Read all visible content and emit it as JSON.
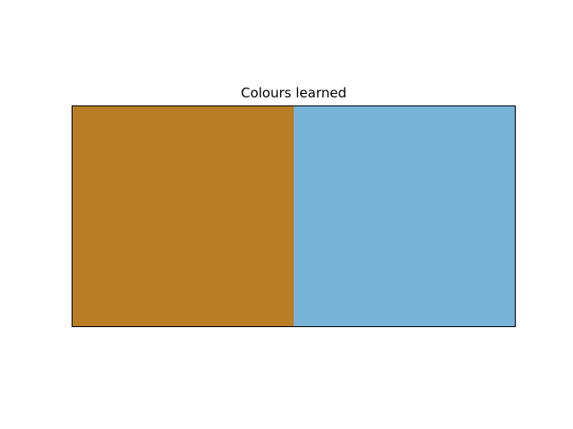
{
  "chart_data": {
    "type": "heatmap",
    "title": "Colours learned",
    "xlabel": "",
    "ylabel": "",
    "grid": false,
    "axes_ticks": false,
    "rows": 1,
    "columns": 2,
    "cells": [
      {
        "row": 0,
        "col": 0,
        "color": "#b87d25"
      },
      {
        "row": 0,
        "col": 1,
        "color": "#78b3d8"
      }
    ],
    "frame_color": "#000000"
  }
}
